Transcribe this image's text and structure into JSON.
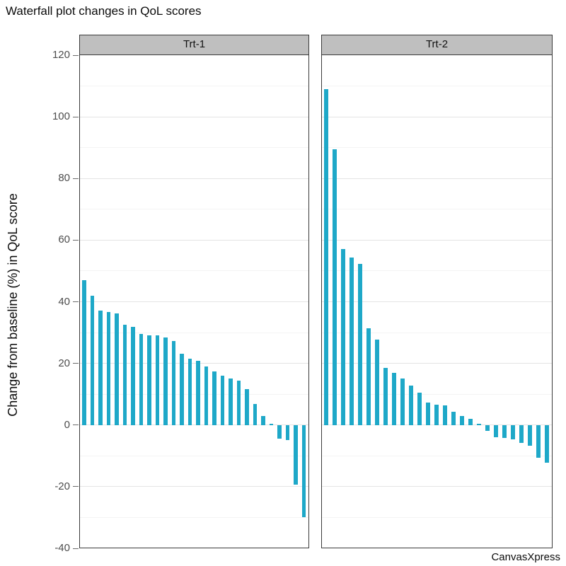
{
  "title": "Waterfall plot changes in QoL scores",
  "watermark": "CanvasXpress",
  "y_axis": {
    "label": "Change from baseline (%) in QoL score",
    "tick_labels": [
      "120",
      "100",
      "80",
      "60",
      "40",
      "20",
      "0",
      "-20",
      "-40"
    ],
    "tick_values": [
      120,
      100,
      80,
      60,
      40,
      20,
      0,
      -20,
      -40
    ]
  },
  "panels": [
    {
      "label": "Trt-1"
    },
    {
      "label": "Trt-2"
    }
  ],
  "colors": {
    "bar": "#1EA8C8",
    "header_bg": "#BFBFBF",
    "panel_border": "#3A3A3A",
    "grid_major": "#E4E4E4",
    "grid_minor": "#F4F4F4",
    "tick_text": "#4D4D4D"
  },
  "chart_data": {
    "type": "bar",
    "subtype": "waterfall",
    "title": "Waterfall plot changes in QoL scores",
    "ylabel": "Change from baseline (%) in QoL score",
    "xlabel": "",
    "ylim": [
      -40,
      120
    ],
    "ytick_step": 20,
    "grid": "horizontal major every 20, minor every 10",
    "legend_position": "none",
    "facets": "two side-by-side panels with shared y axis",
    "series": [
      {
        "name": "Trt-1",
        "values": [
          47,
          42,
          37.2,
          36.6,
          36.2,
          32.5,
          31.8,
          29.5,
          29.2,
          29,
          28.5,
          27.3,
          23.2,
          21.5,
          20.8,
          19.1,
          17.4,
          16,
          15,
          14.4,
          11.7,
          6.8,
          2.9,
          0.5,
          -4.5,
          -4.9,
          -19.4,
          -30
        ]
      },
      {
        "name": "Trt-2",
        "values": [
          109,
          89.5,
          57,
          54.3,
          52.2,
          31.5,
          27.8,
          18.6,
          17,
          15,
          12.7,
          10.6,
          7.2,
          6.7,
          6.4,
          4.3,
          3,
          2,
          0.5,
          -1.9,
          -4,
          -4.3,
          -4.6,
          -5.7,
          -6.8,
          -10.6,
          -12.3
        ]
      }
    ]
  }
}
